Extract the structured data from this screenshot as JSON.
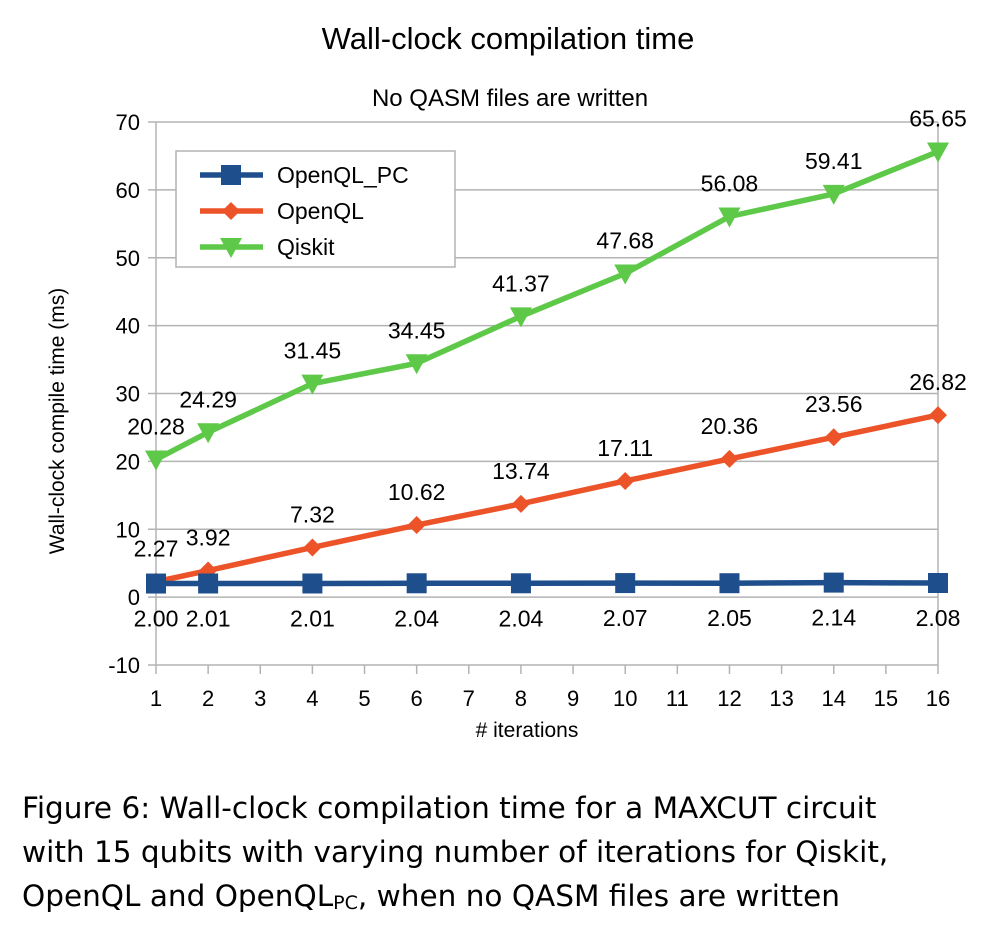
{
  "chart_data": {
    "type": "line",
    "title": "Wall-clock compilation time",
    "subtitle": "No QASM files are written",
    "xlabel": "# iterations",
    "ylabel": "Wall-clock compile time (ms)",
    "x_ticks": [
      1,
      2,
      3,
      4,
      5,
      6,
      7,
      8,
      9,
      10,
      11,
      12,
      13,
      14,
      15,
      16
    ],
    "xlim": [
      1,
      16
    ],
    "ylim": [
      -10,
      70
    ],
    "y_ticks": [
      -10,
      0,
      10,
      20,
      30,
      40,
      50,
      60,
      70
    ],
    "grid": "horizontal",
    "legend_position": "top-left",
    "x": [
      1,
      2,
      4,
      6,
      8,
      10,
      12,
      14,
      16
    ],
    "series": [
      {
        "name": "OpenQL_PC",
        "color": "#1f4e8c",
        "marker": "square",
        "values": [
          2.0,
          2.01,
          2.01,
          2.04,
          2.04,
          2.07,
          2.05,
          2.14,
          2.08
        ],
        "labels": [
          "2.00",
          "2.01",
          "2.01",
          "2.04",
          "2.04",
          "2.07",
          "2.05",
          "2.14",
          "2.08"
        ]
      },
      {
        "name": "OpenQL",
        "color": "#ec5328",
        "marker": "diamond",
        "values": [
          2.27,
          3.92,
          7.32,
          10.62,
          13.74,
          17.11,
          20.36,
          23.56,
          26.82
        ],
        "labels": [
          "2.27",
          "3.92",
          "7.32",
          "10.62",
          "13.74",
          "17.11",
          "20.36",
          "23.56",
          "26.82"
        ]
      },
      {
        "name": "Qiskit",
        "color": "#5ec848",
        "marker": "triangle-down",
        "values": [
          20.28,
          24.29,
          31.45,
          34.45,
          41.37,
          47.68,
          56.08,
          59.41,
          65.65
        ],
        "labels": [
          "20.28",
          "24.29",
          "31.45",
          "34.45",
          "41.37",
          "47.68",
          "56.08",
          "59.41",
          "65.65"
        ]
      }
    ]
  },
  "caption": {
    "line1": "Figure 6: Wall-clock compilation time for a MAXCUT circuit",
    "line2": "with 15 qubits with varying number of iterations for Qiskit,",
    "line3_start": "OpenQL and OpenQL",
    "line3_sub": "PC",
    "line3_end": ", when no QASM files are written"
  }
}
